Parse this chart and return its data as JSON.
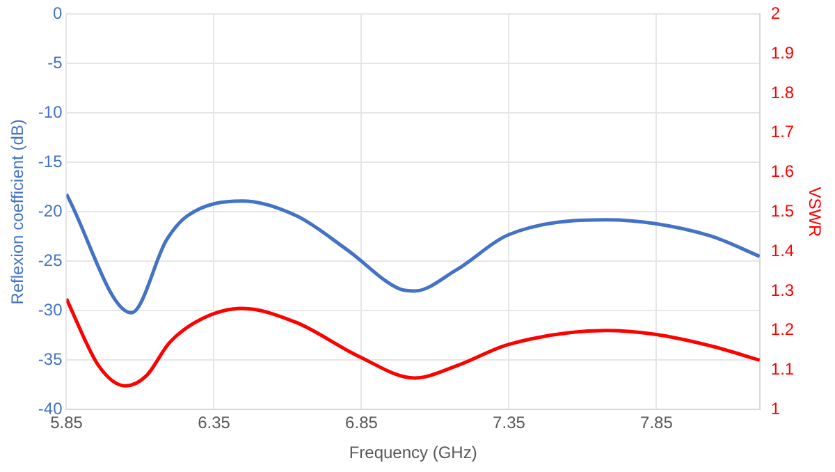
{
  "chart_data": {
    "type": "line",
    "xlabel": "Frequency (GHz)",
    "ylabel": "Reflexion coefficient (dB)",
    "y2label": "VSWR",
    "xlim": [
      5.85,
      8.2
    ],
    "xticks": [
      5.85,
      6.35,
      6.85,
      7.35,
      7.85
    ],
    "ylim": [
      -40,
      0
    ],
    "yticks": [
      -40,
      -35,
      -30,
      -25,
      -20,
      -15,
      -10,
      -5,
      0
    ],
    "y2lim": [
      1,
      2
    ],
    "y2ticks": [
      1,
      1.1,
      1.2,
      1.3,
      1.4,
      1.5,
      1.6,
      1.7,
      1.8,
      1.9,
      2
    ],
    "grid": true,
    "legend": false,
    "marker": "none",
    "line_style": "solid",
    "series": [
      {
        "color": "#4472c4",
        "x": [
          5.85,
          6.07,
          6.19,
          6.26,
          6.445,
          6.63,
          6.8,
          6.98,
          7.03,
          7.17,
          7.35,
          7.68,
          7.85,
          8.04,
          8.2
        ],
        "values": [
          -18.2,
          -30.2,
          -22.8,
          -20.4,
          -18.9,
          -20.4,
          -23.8,
          -27.8,
          -28.0,
          -25.9,
          -22.3,
          -20.8,
          -21.2,
          -22.5,
          -24.5
        ]
      },
      {
        "color": "#ff0000",
        "axis": "y2",
        "x": [
          5.85,
          5.96,
          6.05,
          6.12,
          6.2,
          6.31,
          6.445,
          6.63,
          6.84,
          7.03,
          7.17,
          7.35,
          7.68,
          7.85,
          8.04,
          8.2
        ],
        "values": [
          1.28,
          1.11,
          1.06,
          1.085,
          1.17,
          1.23,
          1.256,
          1.22,
          1.135,
          1.08,
          1.11,
          1.165,
          1.2,
          1.19,
          1.16,
          1.125
        ]
      }
    ]
  }
}
